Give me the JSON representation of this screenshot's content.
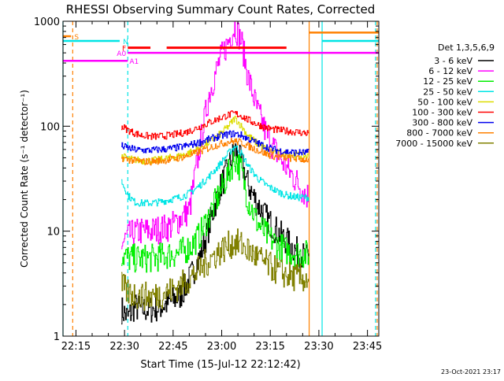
{
  "colors": {
    "background": "#ffffff",
    "axis": "#000000",
    "cyan": "#00e5e5",
    "magenta": "#ff00ff",
    "red": "#ff0000",
    "orange": "#ff8000"
  },
  "chart_data": {
    "type": "line",
    "title": "RHESSI Observing Summary Count Rates, Corrected",
    "xlabel": "Start Time (15-Jul-12 22:12:42)",
    "ylabel": "Corrected Count Rate (s⁻¹ detector⁻¹)",
    "y_scale": "log",
    "ylim": [
      1,
      1000
    ],
    "xlim_minutes_after_22_00": [
      11,
      50
    ],
    "x_ticks": [
      {
        "label": "22:15",
        "minute": 15
      },
      {
        "label": "22:30",
        "minute": 30
      },
      {
        "label": "22:45",
        "minute": 45
      },
      {
        "label": "23:00",
        "minute": 60
      },
      {
        "label": "23:15",
        "minute": 75
      },
      {
        "label": "23:30",
        "minute": 90
      },
      {
        "label": "23:45",
        "minute": 105
      }
    ],
    "y_ticks": [
      {
        "label": "1",
        "value": 1
      },
      {
        "label": "10",
        "value": 10
      },
      {
        "label": "100",
        "value": 100
      },
      {
        "label": "1000",
        "value": 1000
      }
    ],
    "legend_title": "Det 1,3,5,6,9",
    "legend_position": "right",
    "data_start_minute": 29,
    "data_end_minute": 87,
    "series": [
      {
        "name": "3 - 6 keV",
        "color": "#000000",
        "x": [
          29,
          31,
          33,
          35,
          38,
          41,
          44,
          47,
          50,
          53,
          56,
          59,
          62,
          64,
          66,
          68,
          71,
          74,
          77,
          80,
          83,
          86
        ],
        "y": [
          1.8,
          1.5,
          1.9,
          1.8,
          1.8,
          1.9,
          2.1,
          2.4,
          3.5,
          5.5,
          11,
          24,
          40,
          60,
          45,
          28,
          18,
          13,
          10,
          8,
          6.5,
          5.5
        ]
      },
      {
        "name": "6 - 12 keV",
        "color": "#ff00ff",
        "x": [
          29,
          31,
          33,
          35,
          38,
          41,
          44,
          47,
          50,
          53,
          56,
          59,
          62,
          64,
          66,
          68,
          71,
          74,
          77,
          80,
          83,
          86
        ],
        "y": [
          7.5,
          9,
          9.5,
          10,
          10,
          10.5,
          11,
          13,
          16,
          60,
          200,
          400,
          650,
          900,
          650,
          300,
          140,
          80,
          55,
          40,
          30,
          22
        ]
      },
      {
        "name": "12 - 25 keV",
        "color": "#00ee00",
        "x": [
          29,
          31,
          33,
          35,
          38,
          41,
          44,
          47,
          50,
          53,
          56,
          59,
          62,
          64,
          66,
          68,
          71,
          74,
          77,
          80,
          83,
          86
        ],
        "y": [
          6,
          5.5,
          5.5,
          5.5,
          5.5,
          5.7,
          6,
          6.2,
          7,
          9,
          14,
          22,
          35,
          50,
          38,
          20,
          12,
          9,
          7.5,
          6.5,
          6.2,
          6
        ]
      },
      {
        "name": "25 - 50 keV",
        "color": "#00e5e5",
        "x": [
          29,
          31,
          33,
          35,
          38,
          41,
          44,
          47,
          50,
          53,
          56,
          59,
          62,
          64,
          66,
          68,
          71,
          74,
          77,
          80,
          83,
          86
        ],
        "y": [
          30,
          22,
          19,
          18.5,
          18.5,
          19,
          20,
          21,
          23,
          27,
          33,
          42,
          55,
          65,
          55,
          42,
          32,
          27,
          24,
          22,
          21,
          21
        ]
      },
      {
        "name": "50 - 100 keV",
        "color": "#dddd00",
        "x": [
          29,
          31,
          33,
          35,
          38,
          41,
          44,
          47,
          50,
          53,
          56,
          59,
          62,
          64,
          66,
          68,
          71,
          74,
          77,
          80,
          83,
          86
        ],
        "y": [
          52,
          49,
          48,
          47,
          47,
          48,
          50,
          52,
          56,
          62,
          70,
          82,
          100,
          120,
          100,
          82,
          68,
          60,
          56,
          54,
          53,
          52
        ]
      },
      {
        "name": "100 - 300 keV",
        "color": "#ff0000",
        "x": [
          29,
          31,
          33,
          35,
          38,
          41,
          44,
          47,
          50,
          53,
          56,
          59,
          62,
          64,
          66,
          68,
          71,
          74,
          77,
          80,
          83,
          86
        ],
        "y": [
          100,
          92,
          86,
          82,
          80,
          80,
          82,
          85,
          90,
          98,
          108,
          118,
          128,
          132,
          126,
          115,
          104,
          96,
          92,
          90,
          88,
          86
        ]
      },
      {
        "name": "300 - 800 keV",
        "color": "#0000ee",
        "x": [
          29,
          31,
          33,
          35,
          38,
          41,
          44,
          47,
          50,
          53,
          56,
          59,
          62,
          64,
          66,
          68,
          71,
          74,
          77,
          80,
          83,
          86
        ],
        "y": [
          65,
          62,
          60,
          59,
          59,
          60,
          61,
          63,
          66,
          70,
          75,
          80,
          84,
          85,
          82,
          76,
          69,
          63,
          59,
          57,
          56,
          56
        ]
      },
      {
        "name": "800 - 7000 keV",
        "color": "#ff8000",
        "x": [
          29,
          31,
          33,
          35,
          38,
          41,
          44,
          47,
          50,
          53,
          56,
          59,
          62,
          64,
          66,
          68,
          71,
          74,
          77,
          80,
          83,
          86
        ],
        "y": [
          50,
          48,
          47,
          46,
          46,
          47,
          48,
          50,
          53,
          57,
          62,
          67,
          71,
          72,
          70,
          65,
          59,
          54,
          51,
          50,
          49,
          48
        ]
      },
      {
        "name": "7000 - 15000 keV",
        "color": "#808000",
        "x": [
          29,
          31,
          33,
          35,
          38,
          41,
          44,
          47,
          50,
          53,
          56,
          59,
          62,
          64,
          66,
          68,
          71,
          74,
          77,
          80,
          83,
          86
        ],
        "y": [
          3.0,
          2.6,
          2.5,
          2.4,
          2.4,
          2.5,
          2.7,
          3.0,
          3.5,
          4.3,
          5.3,
          6.3,
          7.3,
          7.8,
          7.4,
          6.6,
          5.6,
          4.8,
          4.2,
          3.8,
          3.6,
          3.5
        ]
      }
    ],
    "state_bars": [
      {
        "label": "S",
        "color": "#ff8000",
        "level": 720,
        "x_start": 11,
        "x_end": 13.5
      },
      {
        "label": "N",
        "color": "#00e5e5",
        "level": 650,
        "x_start": 11,
        "x_end": 28.5
      },
      {
        "label": "F",
        "color": "#ff0000",
        "level": 560,
        "x_start": 31,
        "x_end": 38
      },
      {
        "label": "A0",
        "color": "#ff00ff",
        "level": 500,
        "x_start": 31,
        "x_end": 108.5
      },
      {
        "label": "A1",
        "color": "#ff00ff",
        "level": 420,
        "x_start": 11,
        "x_end": 31
      }
    ],
    "state_bars_unlabeled": [
      {
        "color": "#ff0000",
        "level": 560,
        "x_start": 43,
        "x_end": 80
      },
      {
        "color": "#ff8000",
        "level": 780,
        "x_start": 87,
        "x_end": 108.5
      },
      {
        "color": "#00e5e5",
        "level": 650,
        "x_start": 91,
        "x_end": 108.5
      }
    ],
    "vertical_markers": [
      {
        "color": "#00e5e5",
        "minute": 11,
        "style": "solid"
      },
      {
        "color": "#ff8000",
        "minute": 14,
        "style": "dashed"
      },
      {
        "color": "#00e5e5",
        "minute": 31,
        "style": "dashed"
      },
      {
        "color": "#ff8000",
        "minute": 87,
        "style": "solid"
      },
      {
        "color": "#00e5e5",
        "minute": 91,
        "style": "solid"
      },
      {
        "color": "#00e5e5",
        "minute": 107.5,
        "style": "dashed"
      },
      {
        "color": "#ff8000",
        "minute": 108,
        "style": "dashed"
      }
    ],
    "timestamp": "23-Oct-2021 23:17"
  }
}
